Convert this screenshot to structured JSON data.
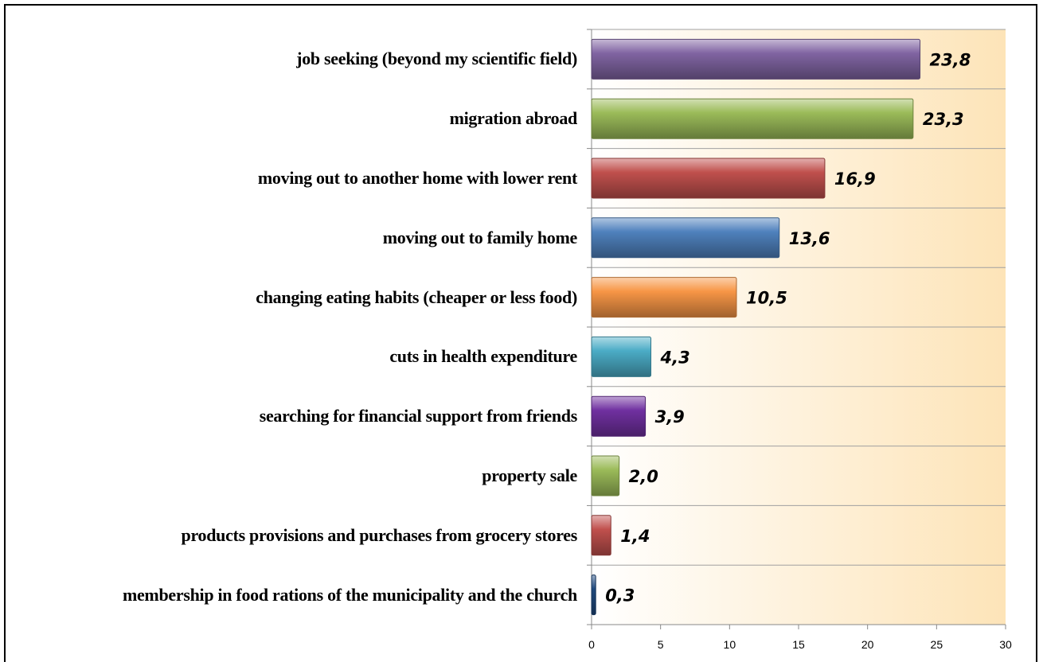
{
  "chart_data": {
    "type": "barh",
    "categories": [
      "job seeking (beyond my scientific field)",
      "migration abroad",
      "moving out to another home with lower rent",
      "moving out to family home",
      "changing eating habits (cheaper or less food)",
      "cuts in health expenditure",
      "searching for financial support from friends",
      "property sale",
      "products provisions and purchases from grocery stores",
      "membership in food rations of the municipality and the church"
    ],
    "values": [
      23.8,
      23.3,
      16.9,
      13.6,
      10.5,
      4.3,
      3.9,
      2.0,
      1.4,
      0.3
    ],
    "value_labels": [
      "23,8",
      "23,3",
      "16,9",
      "13,6",
      "10,5",
      "4,3",
      "3,9",
      "2,0",
      "1,4",
      "0,3"
    ],
    "colors": [
      "#8064a2",
      "#9bbb59",
      "#c0504d",
      "#4f81bd",
      "#f79646",
      "#4bacc6",
      "#7030a0",
      "#9bbb59",
      "#c0504d",
      "#1f497d"
    ],
    "xlim": [
      0,
      30
    ],
    "xticks": [
      0,
      5,
      10,
      15,
      20,
      25,
      30
    ],
    "grid": true
  }
}
